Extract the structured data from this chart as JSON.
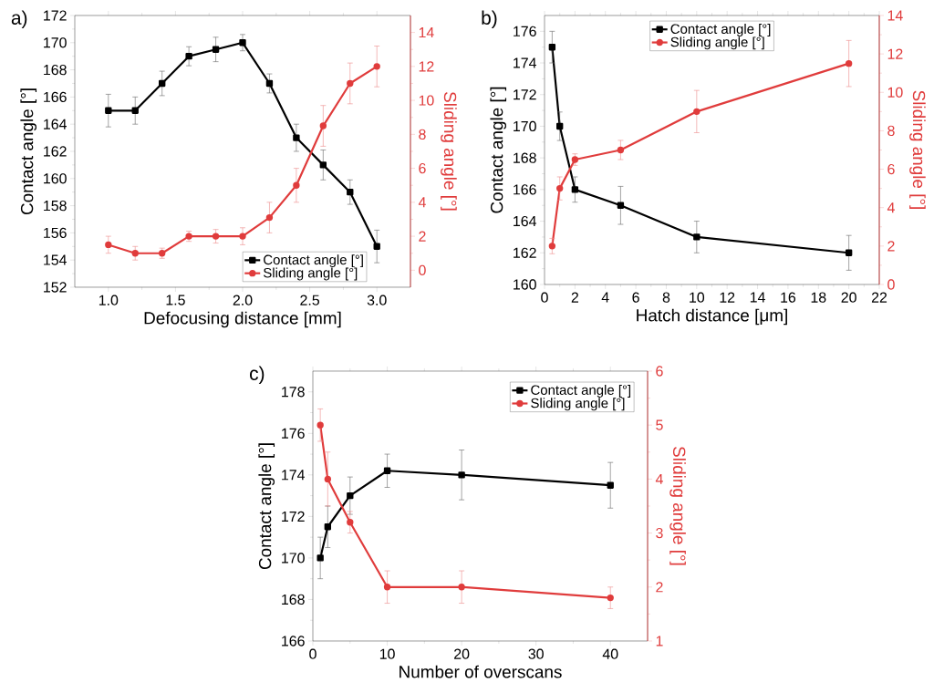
{
  "chart_data": [
    {
      "type": "line",
      "title": "a)",
      "xlabel": "Defocusing distance [mm]",
      "ylabel": "Contact angle [°]",
      "y2label": "Sliding angle [°]",
      "x": [
        1.0,
        1.2,
        1.4,
        1.6,
        1.8,
        2.0,
        2.2,
        2.4,
        2.6,
        2.8,
        3.0
      ],
      "xlim": [
        0.75,
        3.25
      ],
      "xticks": [
        {
          "value": 1.0,
          "label": "1.0"
        },
        {
          "value": 1.5,
          "label": "1.5"
        },
        {
          "value": 2.0,
          "label": "2.0"
        },
        {
          "value": 2.5,
          "label": "2.5"
        },
        {
          "value": 3.0,
          "label": "3.0"
        }
      ],
      "ylim": [
        152,
        172
      ],
      "yticks": [
        152,
        154,
        156,
        158,
        160,
        162,
        164,
        166,
        168,
        170,
        172
      ],
      "y2lim": [
        -1,
        15
      ],
      "y2ticks": [
        0,
        2,
        4,
        6,
        8,
        10,
        12,
        14
      ],
      "legend": "bottom right",
      "series": [
        {
          "name": "Contact angle [°]",
          "color": "#000000",
          "marker": "square",
          "values": [
            165,
            165,
            167,
            169,
            169.5,
            170,
            167,
            163,
            161,
            159,
            155
          ],
          "errors": [
            1.2,
            1,
            0.9,
            0.7,
            0.9,
            0.6,
            0.7,
            1,
            1.1,
            0.9,
            1.2
          ]
        },
        {
          "name": "Sliding angle [°]",
          "color": "#e03c3c",
          "marker": "circle",
          "axis": "y2",
          "values": [
            1.5,
            1,
            1,
            2,
            2,
            2,
            3.1,
            5,
            8.5,
            11,
            12
          ],
          "errors": [
            0.5,
            0.4,
            0.3,
            0.3,
            0.4,
            0.5,
            0.9,
            1,
            1.2,
            1.2,
            1.2
          ]
        }
      ]
    },
    {
      "type": "line",
      "title": "b)",
      "xlabel": "Hatch distance [μm]",
      "ylabel": "Contact angle [°]",
      "y2label": "Sliding angle [°]",
      "x": [
        0.5,
        1,
        2,
        5,
        10,
        20
      ],
      "xlim": [
        0,
        22
      ],
      "xticks": [
        0,
        2,
        4,
        6,
        8,
        10,
        12,
        14,
        16,
        18,
        20,
        22
      ],
      "ylim": [
        160,
        177
      ],
      "yticks": [
        160,
        162,
        164,
        166,
        168,
        170,
        172,
        174,
        176
      ],
      "y2lim": [
        0,
        14
      ],
      "y2ticks": [
        0,
        2,
        4,
        6,
        8,
        10,
        12,
        14
      ],
      "legend": "top",
      "series": [
        {
          "name": "Contact angle [°]",
          "color": "#000000",
          "marker": "square",
          "values": [
            175,
            170,
            166,
            165,
            163,
            162
          ],
          "errors": [
            1,
            0.9,
            0.8,
            1.2,
            1,
            1.1
          ]
        },
        {
          "name": "Sliding angle [°]",
          "color": "#e03c3c",
          "marker": "circle",
          "axis": "y2",
          "values": [
            2,
            5,
            6.5,
            7,
            9,
            11.5
          ],
          "errors": [
            0.4,
            0.6,
            0.3,
            0.5,
            1.1,
            1.2
          ]
        }
      ]
    },
    {
      "type": "line",
      "title": "c)",
      "xlabel": "Number of overscans",
      "ylabel": "Contact angle [°]",
      "y2label": "Sliding angle  [°]",
      "x": [
        1,
        2,
        5,
        10,
        20,
        40
      ],
      "xlim": [
        0,
        45
      ],
      "xticks": [
        0,
        10,
        20,
        30,
        40
      ],
      "ylim": [
        166,
        179
      ],
      "yticks": [
        166,
        168,
        170,
        172,
        174,
        176,
        178
      ],
      "y2lim": [
        1,
        6
      ],
      "y2ticks": [
        1,
        2,
        3,
        4,
        5,
        6
      ],
      "legend": "top right",
      "series": [
        {
          "name": "Contact angle [°]",
          "color": "#000000",
          "marker": "square",
          "values": [
            170,
            171.5,
            173,
            174.2,
            174,
            173.5
          ],
          "errors": [
            1,
            1,
            0.9,
            0.8,
            1.2,
            1.1
          ]
        },
        {
          "name": "Sliding angle  [°]",
          "color": "#e03c3c",
          "marker": "circle",
          "axis": "y2",
          "values": [
            5,
            4,
            3.2,
            2,
            2,
            1.8
          ],
          "errors": [
            0.3,
            0.5,
            0.2,
            0.3,
            0.3,
            0.2
          ]
        }
      ]
    }
  ]
}
